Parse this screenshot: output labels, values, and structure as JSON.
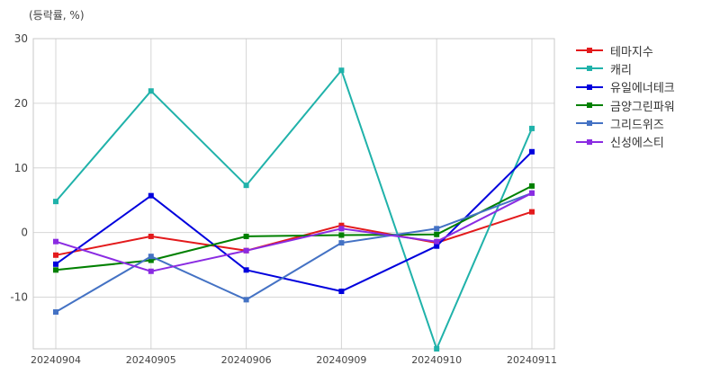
{
  "unit_label": "(등락률, %)",
  "chart_data": {
    "type": "line",
    "categories": [
      "20240904",
      "20240905",
      "20240906",
      "20240909",
      "20240910",
      "20240911"
    ],
    "ylim": [
      -18,
      30
    ],
    "yticks": [
      30,
      20,
      10,
      0,
      -10
    ],
    "ytick_labels": [
      "30",
      "20",
      "10",
      "0",
      "-10"
    ],
    "grid": true,
    "legend_position": "top-right (outside)",
    "series": [
      {
        "name": "테마지수",
        "color": "#e31a1c",
        "values": [
          -3.5,
          -0.6,
          -2.8,
          1.1,
          -1.6,
          3.2
        ]
      },
      {
        "name": "캐리",
        "color": "#20b2aa",
        "values": [
          4.8,
          21.9,
          7.3,
          25.1,
          -18.0,
          16.1
        ]
      },
      {
        "name": "유일에너테크",
        "color": "#0000dd",
        "values": [
          -4.9,
          5.7,
          -5.8,
          -9.1,
          -2.1,
          12.5
        ]
      },
      {
        "name": "금양그린파워",
        "color": "#008000",
        "values": [
          -5.8,
          -4.3,
          -0.6,
          -0.4,
          -0.3,
          7.2
        ]
      },
      {
        "name": "그리드위즈",
        "color": "#4472c4",
        "values": [
          -12.3,
          -3.7,
          -10.4,
          -1.6,
          0.6,
          6.1
        ]
      },
      {
        "name": "신성에스티",
        "color": "#8a2be2",
        "values": [
          -1.4,
          -6.0,
          -2.8,
          0.6,
          -1.4,
          6.1
        ]
      }
    ]
  }
}
